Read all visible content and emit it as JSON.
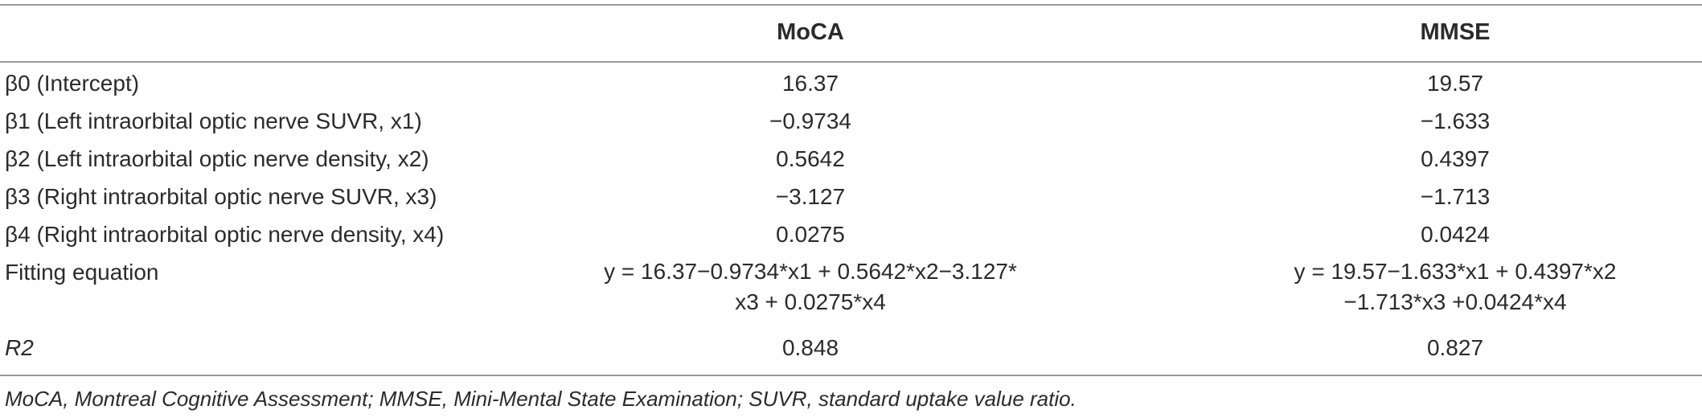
{
  "table": {
    "columns": {
      "moca": "MoCA",
      "mmse": "MMSE"
    },
    "rows": [
      {
        "label": "β0 (Intercept)",
        "moca": "16.37",
        "mmse": "19.57"
      },
      {
        "label": "β1 (Left intraorbital optic nerve SUVR, x1)",
        "moca": "−0.9734",
        "mmse": "−1.633"
      },
      {
        "label": "β2 (Left intraorbital optic nerve density, x2)",
        "moca": "0.5642",
        "mmse": "0.4397"
      },
      {
        "label": "β3 (Right intraorbital optic nerve SUVR, x3)",
        "moca": "−3.127",
        "mmse": "−1.713"
      },
      {
        "label": "β4 (Right intraorbital optic nerve density, x4)",
        "moca": "0.0275",
        "mmse": "0.0424"
      }
    ],
    "fitting": {
      "label": "Fitting equation",
      "moca_line1": "y = 16.37−0.9734*x1 + 0.5642*x2−3.127*",
      "moca_line2": "x3 + 0.0275*x4",
      "mmse_line1": "y = 19.57−1.633*x1 + 0.4397*x2",
      "mmse_line2": "−1.713*x3 +0.0424*x4"
    },
    "r2": {
      "label": "R2",
      "moca": "0.848",
      "mmse": "0.827"
    },
    "footnote": "MoCA, Montreal Cognitive Assessment; MMSE, Mini-Mental State Examination; SUVR, standard uptake value ratio."
  }
}
